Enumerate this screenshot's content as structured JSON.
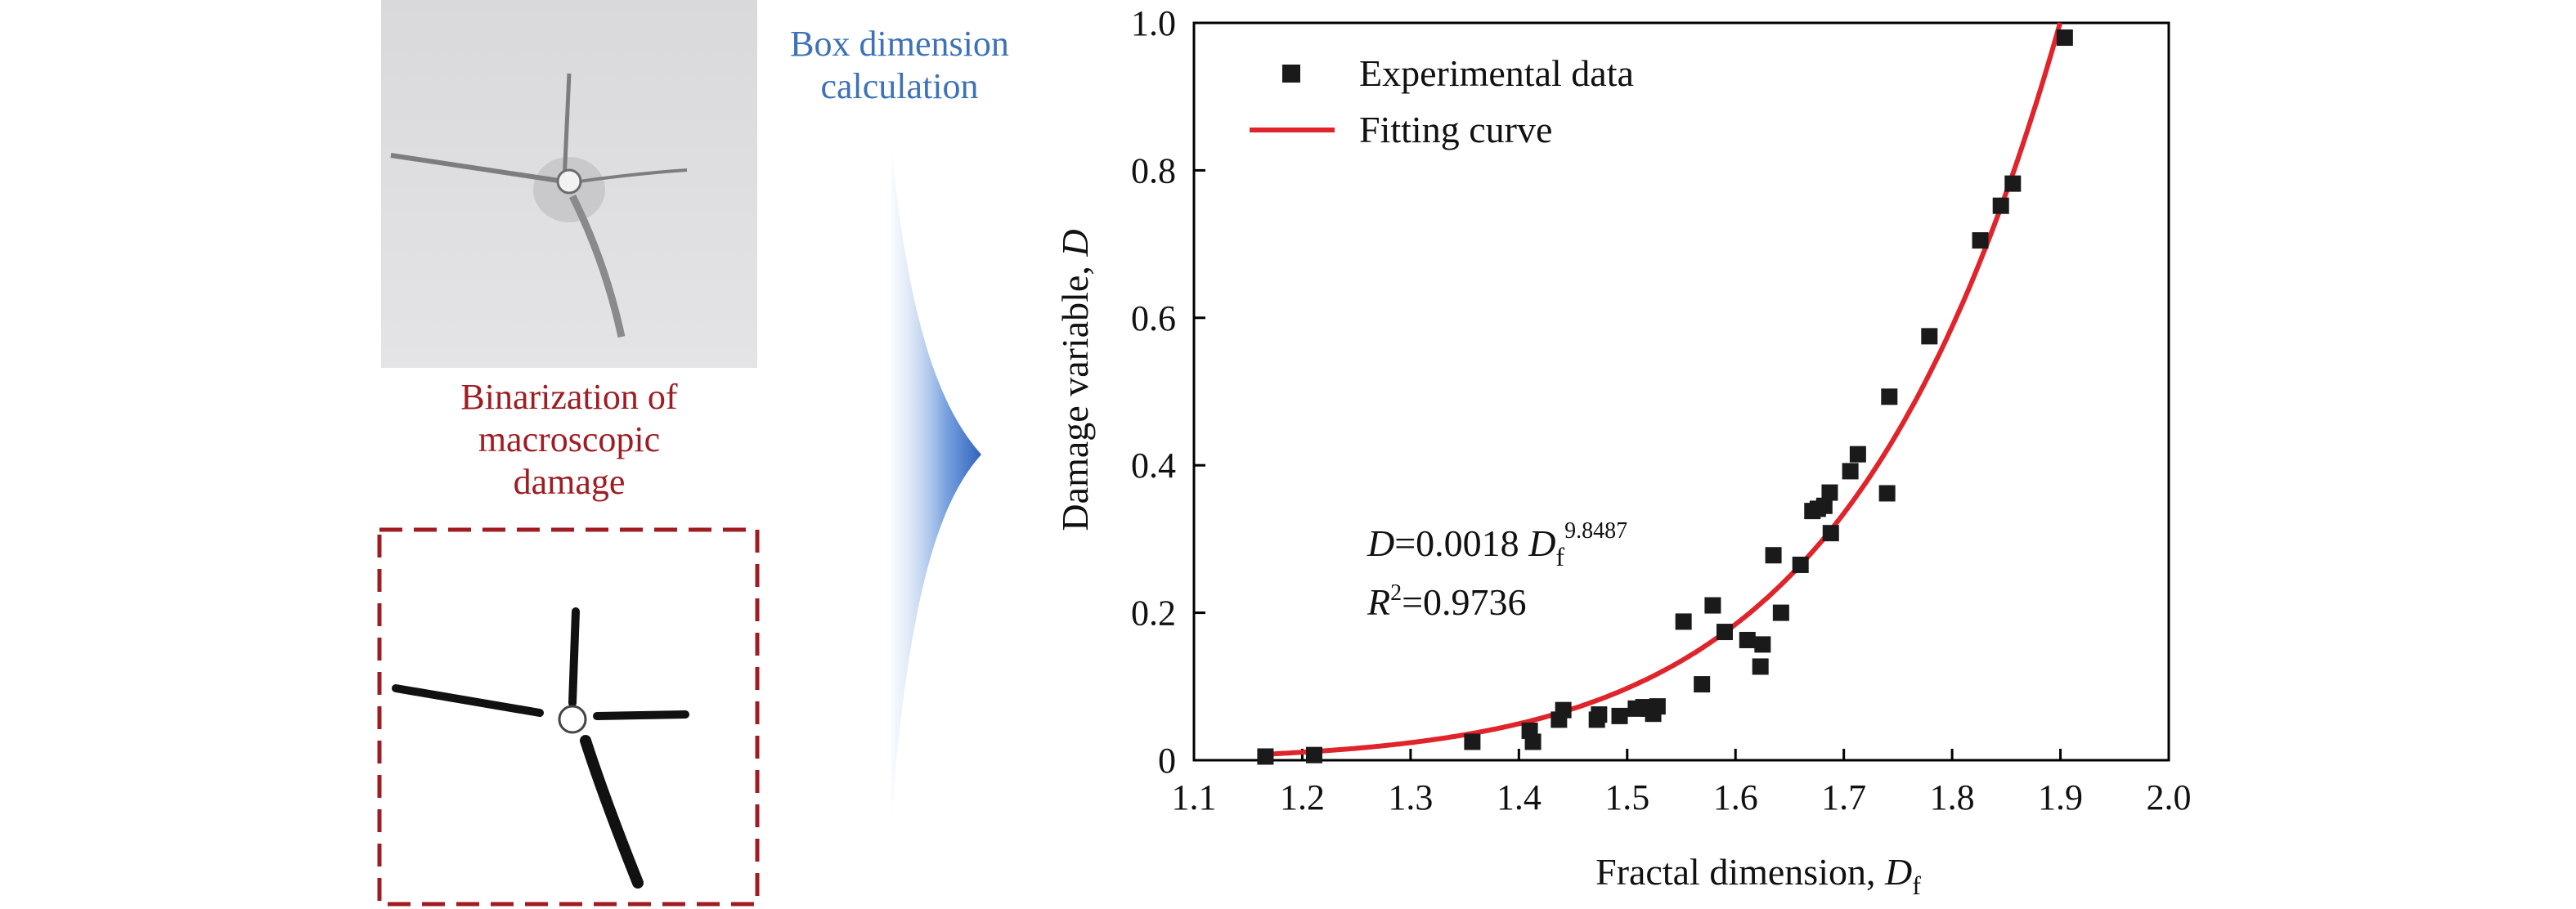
{
  "left_panel": {
    "binarization_label": [
      "Binarization of",
      "macroscopic",
      "damage"
    ],
    "box_dimension_label": [
      "Box dimension",
      "calculation"
    ]
  },
  "colors": {
    "binarization_text": "#a01c23",
    "box_dimension_text": "#3d72b8",
    "arrow": "#3a6fc4",
    "fit_line": "#e0242b",
    "marker": "#1a1a1a",
    "dashed_box": "#a01c23"
  },
  "chart_data": {
    "type": "scatter",
    "xlabel": "Fractal dimension, D_f",
    "ylabel": "Damage variable, D",
    "xlim": [
      1.1,
      2.0
    ],
    "ylim": [
      0,
      1.0
    ],
    "xticks": [
      "1.1",
      "1.2",
      "1.3",
      "1.4",
      "1.5",
      "1.6",
      "1.7",
      "1.8",
      "1.9",
      "2.0"
    ],
    "yticks": [
      "0",
      "0.2",
      "0.4",
      "0.6",
      "0.8",
      "1.0"
    ],
    "legend": {
      "position": "top-left",
      "entries": [
        "Experimental data",
        "Fitting curve"
      ]
    },
    "annotation": {
      "equation": "D=0.0018 D_f^9.8487",
      "r_squared": "R2=0.9736"
    },
    "fit": {
      "coefficient": 0.0018,
      "exponent": 9.8487
    },
    "series": [
      {
        "name": "Experimental data",
        "points": [
          [
            1.166,
            0.005
          ],
          [
            1.211,
            0.007
          ],
          [
            1.357,
            0.025
          ],
          [
            1.41,
            0.04
          ],
          [
            1.413,
            0.025
          ],
          [
            1.437,
            0.055
          ],
          [
            1.441,
            0.068
          ],
          [
            1.472,
            0.055
          ],
          [
            1.474,
            0.062
          ],
          [
            1.493,
            0.06
          ],
          [
            1.508,
            0.07
          ],
          [
            1.515,
            0.072
          ],
          [
            1.52,
            0.07
          ],
          [
            1.524,
            0.063
          ],
          [
            1.528,
            0.073
          ],
          [
            1.552,
            0.188
          ],
          [
            1.569,
            0.103
          ],
          [
            1.579,
            0.21
          ],
          [
            1.59,
            0.174
          ],
          [
            1.611,
            0.163
          ],
          [
            1.623,
            0.127
          ],
          [
            1.625,
            0.157
          ],
          [
            1.635,
            0.278
          ],
          [
            1.642,
            0.2
          ],
          [
            1.66,
            0.265
          ],
          [
            1.671,
            0.338
          ],
          [
            1.676,
            0.341
          ],
          [
            1.682,
            0.345
          ],
          [
            1.687,
            0.363
          ],
          [
            1.688,
            0.308
          ],
          [
            1.706,
            0.392
          ],
          [
            1.713,
            0.415
          ],
          [
            1.74,
            0.362
          ],
          [
            1.742,
            0.493
          ],
          [
            1.779,
            0.575
          ],
          [
            1.826,
            0.705
          ],
          [
            1.845,
            0.752
          ],
          [
            1.856,
            0.782
          ],
          [
            1.904,
            0.98
          ]
        ]
      },
      {
        "name": "Fitting curve",
        "function": "power"
      }
    ]
  }
}
